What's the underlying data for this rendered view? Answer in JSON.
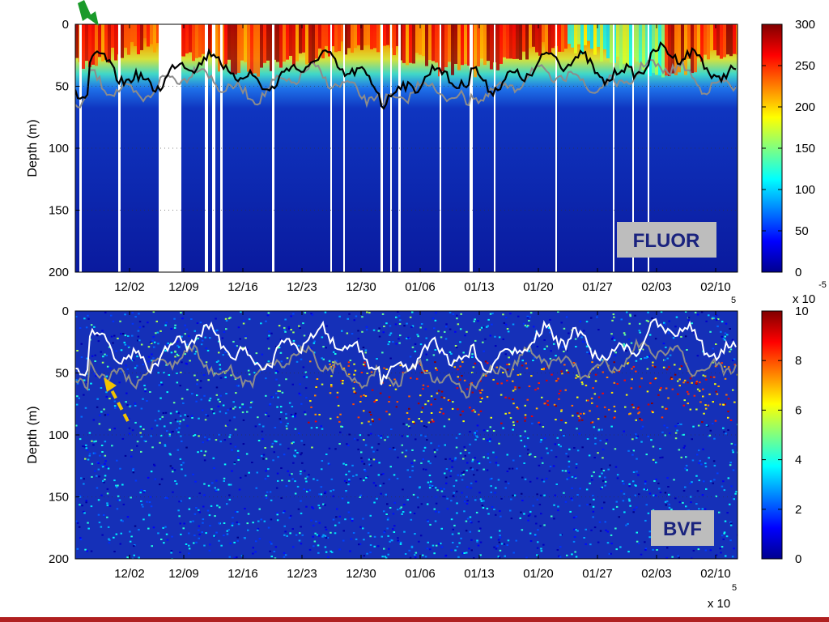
{
  "chart_data": [
    {
      "type": "heatmap",
      "panel_label": "FLUOR",
      "ylabel": "Depth (m)",
      "ylim": [
        200,
        0
      ],
      "yticks": [
        0,
        50,
        100,
        150,
        200
      ],
      "xtick_labels": [
        "12/02",
        "12/09",
        "12/16",
        "12/23",
        "12/30",
        "01/06",
        "01/13",
        "01/20",
        "01/27",
        "02/03",
        "02/10"
      ],
      "xaxis_exponent": "5",
      "colorbar": {
        "min": 0,
        "max": 300,
        "ticks": [
          0,
          50,
          100,
          150,
          200,
          250,
          300
        ]
      },
      "colors": {
        "bg_low": "#0a1a9e",
        "line_primary": "#000000",
        "line_secondary": "#8c8c8c"
      },
      "grid": "dotted"
    },
    {
      "type": "heatmap",
      "panel_label": "BVF",
      "ylabel": "Depth (m)",
      "ylim": [
        200,
        0
      ],
      "yticks": [
        0,
        50,
        100,
        150,
        200
      ],
      "xtick_labels": [
        "12/02",
        "12/09",
        "12/16",
        "12/23",
        "12/30",
        "01/06",
        "01/13",
        "01/20",
        "01/27",
        "02/03",
        "02/10"
      ],
      "xlabel_multiplier": "x 10",
      "xaxis_exponent": "5",
      "colorbar": {
        "min": 0,
        "max": 10,
        "ticks": [
          0,
          2,
          4,
          6,
          8,
          10
        ],
        "multiplier": "x 10",
        "exponent": "-5"
      },
      "colors": {
        "bg_low": "#1530b8",
        "line_primary": "#ffffff",
        "line_secondary": "#8c8c8c",
        "arrow": "#f2c300"
      },
      "grid": "dotted"
    }
  ],
  "annotations": {
    "top_arrow_color": "#1a9a2a"
  }
}
